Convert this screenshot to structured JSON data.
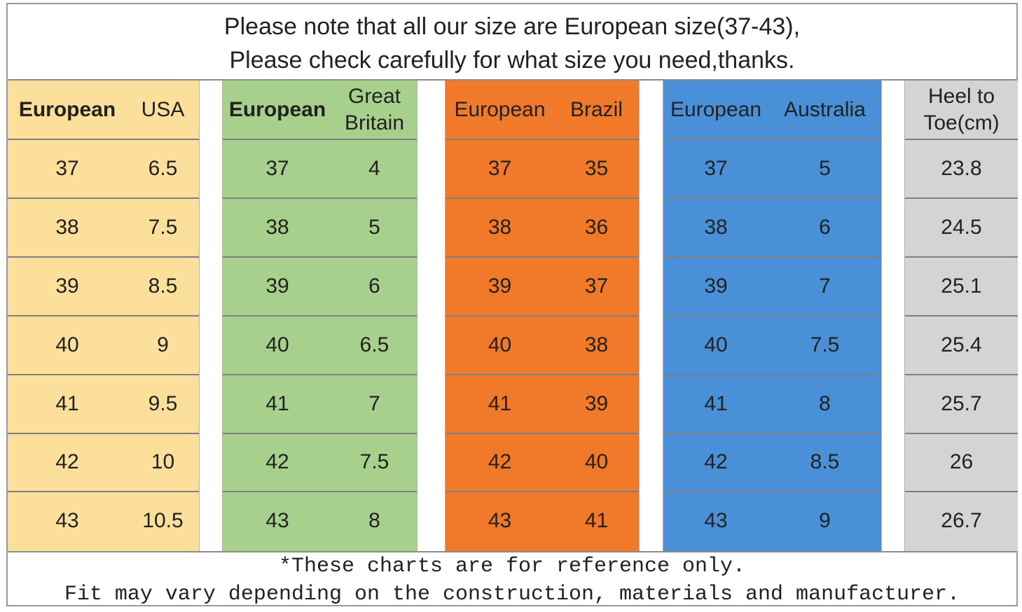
{
  "notice": {
    "line1": "Please note that all our size are European size(37-43),",
    "line2": "Please check carefully for what size you need,thanks."
  },
  "colors": {
    "usa": "#fbdf9b",
    "uk": "#a6d08b",
    "brazil": "#f07a2a",
    "australia": "#4a90d9",
    "heel": "#d4d4d4",
    "separator": "#ffffff",
    "line": "#7f7f7f"
  },
  "tables": [
    {
      "id": "usa",
      "headers": [
        "European",
        "USA"
      ],
      "rows": [
        [
          "37",
          "6.5"
        ],
        [
          "38",
          "7.5"
        ],
        [
          "39",
          "8.5"
        ],
        [
          "40",
          "9"
        ],
        [
          "41",
          "9.5"
        ],
        [
          "42",
          "10"
        ],
        [
          "43",
          "10.5"
        ]
      ]
    },
    {
      "id": "uk",
      "headers": [
        "European",
        "Great Britain"
      ],
      "rows": [
        [
          "37",
          "4"
        ],
        [
          "38",
          "5"
        ],
        [
          "39",
          "6"
        ],
        [
          "40",
          "6.5"
        ],
        [
          "41",
          "7"
        ],
        [
          "42",
          "7.5"
        ],
        [
          "43",
          "8"
        ]
      ]
    },
    {
      "id": "brazil",
      "headers": [
        "European",
        "Brazil"
      ],
      "rows": [
        [
          "37",
          "35"
        ],
        [
          "38",
          "36"
        ],
        [
          "39",
          "37"
        ],
        [
          "40",
          "38"
        ],
        [
          "41",
          "39"
        ],
        [
          "42",
          "40"
        ],
        [
          "43",
          "41"
        ]
      ]
    },
    {
      "id": "australia",
      "headers": [
        "European",
        "Australia"
      ],
      "rows": [
        [
          "37",
          "5"
        ],
        [
          "38",
          "6"
        ],
        [
          "39",
          "7"
        ],
        [
          "40",
          "7.5"
        ],
        [
          "41",
          "8"
        ],
        [
          "42",
          "8.5"
        ],
        [
          "43",
          "9"
        ]
      ]
    },
    {
      "id": "heel",
      "headers": [
        "Heel to Toe(cm)"
      ],
      "rows": [
        [
          "23.8"
        ],
        [
          "24.5"
        ],
        [
          "25.1"
        ],
        [
          "25.4"
        ],
        [
          "25.7"
        ],
        [
          "26"
        ],
        [
          "26.7"
        ]
      ]
    }
  ],
  "footnote": {
    "line1": "*These charts are for reference only.",
    "line2": "Fit may vary depending on the construction, materials and manufacturer."
  }
}
